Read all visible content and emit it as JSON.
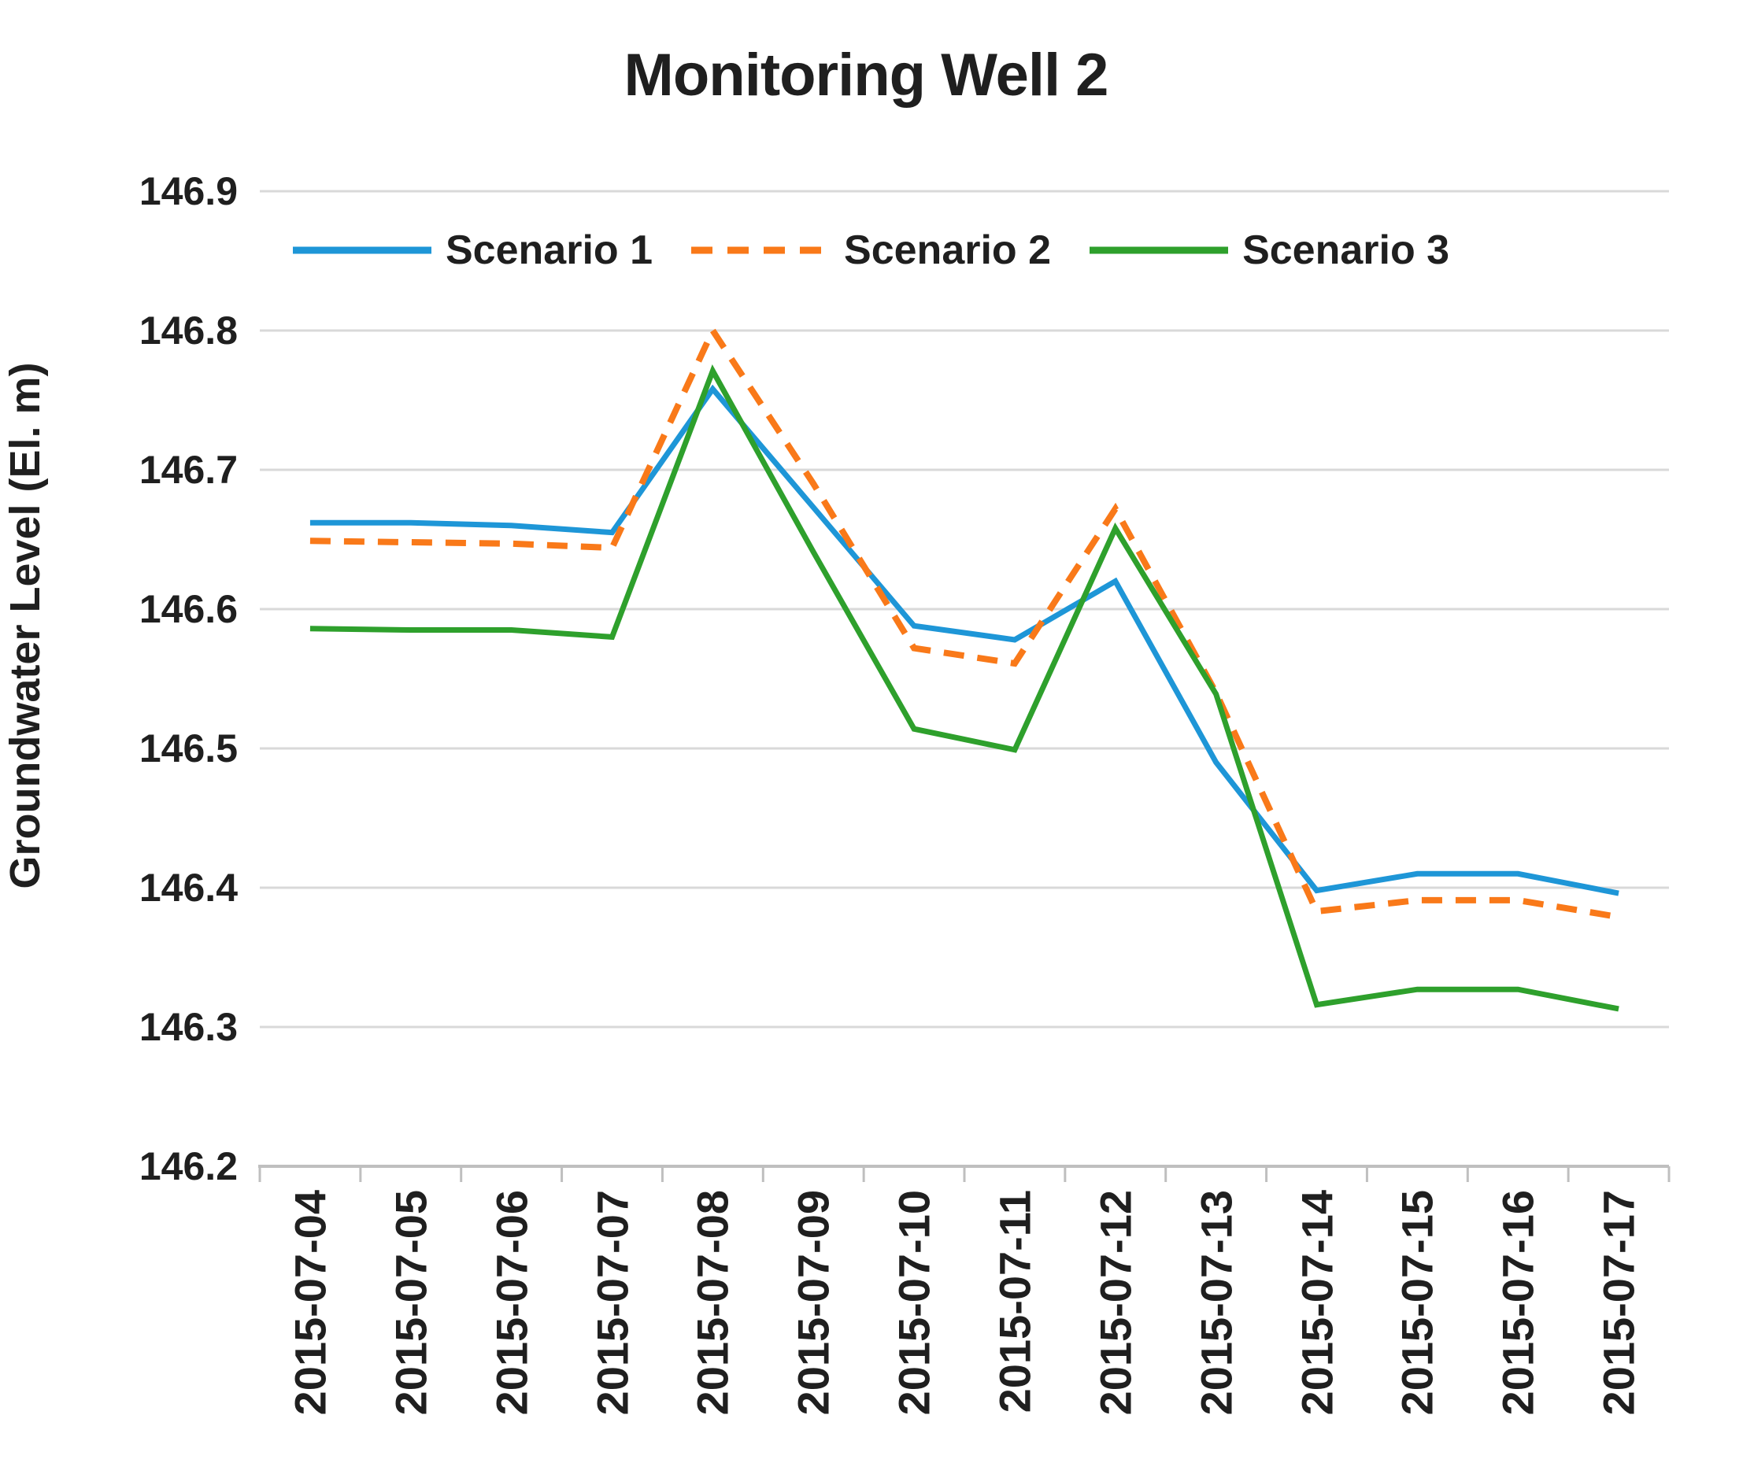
{
  "chart_data": {
    "type": "line",
    "title": "Monitoring Well 2",
    "xlabel": "",
    "ylabel": "Groundwater Level (El. m)",
    "categories": [
      "2015-07-04",
      "2015-07-05",
      "2015-07-06",
      "2015-07-07",
      "2015-07-08",
      "2015-07-09",
      "2015-07-10",
      "2015-07-11",
      "2015-07-12",
      "2015-07-13",
      "2015-07-14",
      "2015-07-15",
      "2015-07-16",
      "2015-07-17"
    ],
    "series": [
      {
        "name": "Scenario 1",
        "color": "#1E96D7",
        "style": "solid",
        "values": [
          146.662,
          146.662,
          146.66,
          146.655,
          146.758,
          146.673,
          146.588,
          146.578,
          146.62,
          146.49,
          146.398,
          146.41,
          146.41,
          146.396
        ]
      },
      {
        "name": "Scenario 2",
        "color": "#F97919",
        "style": "dashed",
        "values": [
          146.649,
          146.648,
          146.647,
          146.644,
          146.8,
          146.69,
          146.572,
          146.561,
          146.672,
          146.54,
          146.383,
          146.391,
          146.391,
          146.379
        ]
      },
      {
        "name": "Scenario 3",
        "color": "#2EA02C",
        "style": "solid",
        "values": [
          146.586,
          146.585,
          146.585,
          146.58,
          146.771,
          146.641,
          146.514,
          146.499,
          146.658,
          146.539,
          146.316,
          146.327,
          146.327,
          146.313
        ]
      }
    ],
    "ylim": [
      146.2,
      146.9
    ],
    "y_ticks": [
      146.9,
      146.8,
      146.7,
      146.6,
      146.5,
      146.4,
      146.3,
      146.2
    ],
    "grid": true,
    "legend_position": "top-left-inside"
  },
  "colors": {
    "gridline": "#D9D9D9",
    "axis": "#BFBFBF",
    "text": "#1F1F1F",
    "background": "#FFFFFF"
  }
}
